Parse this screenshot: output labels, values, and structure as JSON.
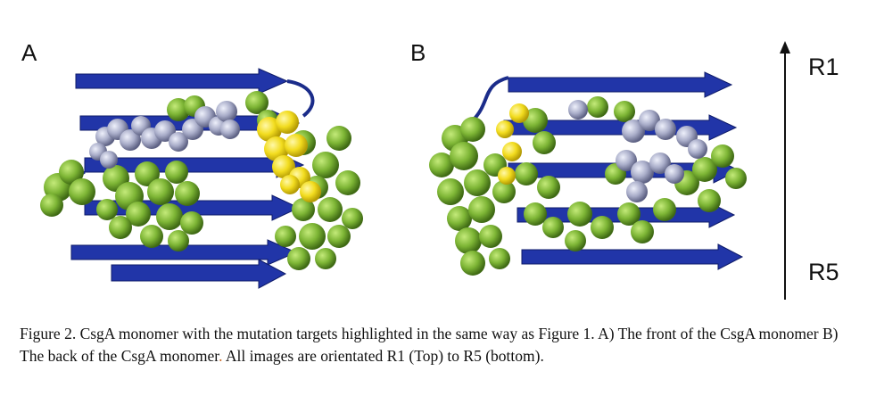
{
  "panels": {
    "a_label": "A",
    "b_label": "B"
  },
  "orientation": {
    "top_label": "R1",
    "bottom_label": "R5"
  },
  "caption": {
    "part1": "Figure 2. CsgA monomer with the mutation targets highlighted in the same way as Figure 1. A) The front of the CsgA monomer B) The back of the CsgA monomer",
    "accent": ".",
    "part2": " All images are orientated R1 (Top) to R5 (bottom)."
  },
  "colors": {
    "strand": "#2135a8",
    "green": "#7db535",
    "grey": "#a9adc9",
    "yellow": "#f2dc1e",
    "caption_accent": "#c8641e"
  }
}
